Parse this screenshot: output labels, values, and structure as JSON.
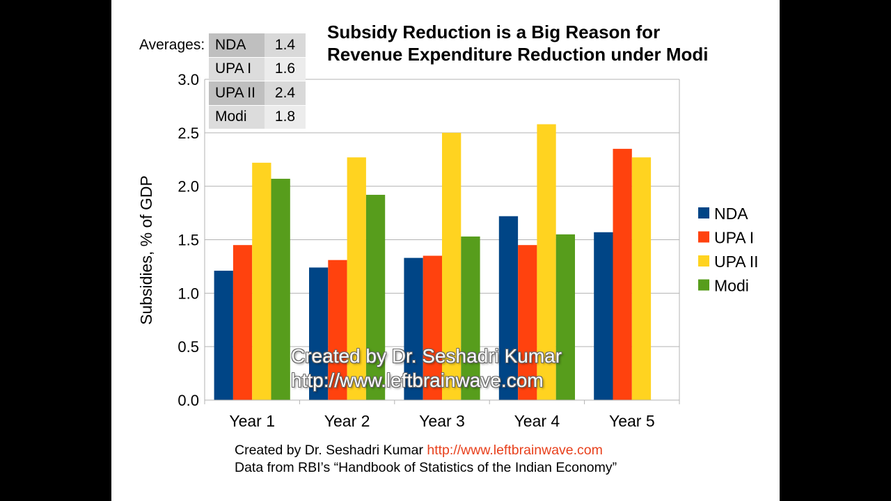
{
  "title_line1": "Subsidy Reduction is a Big Reason for",
  "title_line2": "Revenue Expenditure Reduction under Modi",
  "averages": {
    "label": "Averages:",
    "rows": [
      {
        "name": "NDA",
        "value": "1.4"
      },
      {
        "name": "UPA I",
        "value": "1.6"
      },
      {
        "name": "UPA II",
        "value": "2.4"
      },
      {
        "name": "Modi",
        "value": "1.8"
      }
    ]
  },
  "footer": {
    "line1_text": "Created by Dr. Seshadri Kumar ",
    "line1_url": "http://www.leftbrainwave.com",
    "line2": "Data from RBI’s “Handbook of Statistics of the Indian Economy”"
  },
  "watermark": {
    "line1": "Created by Dr. Seshadri Kumar",
    "line2": "http://www.leftbrainwave.com"
  },
  "chart_data": {
    "type": "bar",
    "ylabel": "Subsidies, % of GDP",
    "ylim": [
      0,
      3.0
    ],
    "yticks": [
      "0.0",
      "0.5",
      "1.0",
      "1.5",
      "2.0",
      "2.5",
      "3.0"
    ],
    "grid": true,
    "legend_position": "right",
    "categories": [
      "Year 1",
      "Year 2",
      "Year 3",
      "Year 4",
      "Year 5"
    ],
    "series": [
      {
        "name": "NDA",
        "color": "#004586",
        "values": [
          1.21,
          1.24,
          1.33,
          1.72,
          1.57
        ]
      },
      {
        "name": "UPA I",
        "color": "#ff420e",
        "values": [
          1.45,
          1.31,
          1.35,
          1.45,
          2.35
        ]
      },
      {
        "name": "UPA II",
        "color": "#ffd320",
        "values": [
          2.22,
          2.27,
          2.5,
          2.58,
          2.27
        ]
      },
      {
        "name": "Modi",
        "color": "#579d1c",
        "values": [
          2.07,
          1.92,
          1.53,
          1.55,
          null
        ]
      }
    ]
  }
}
